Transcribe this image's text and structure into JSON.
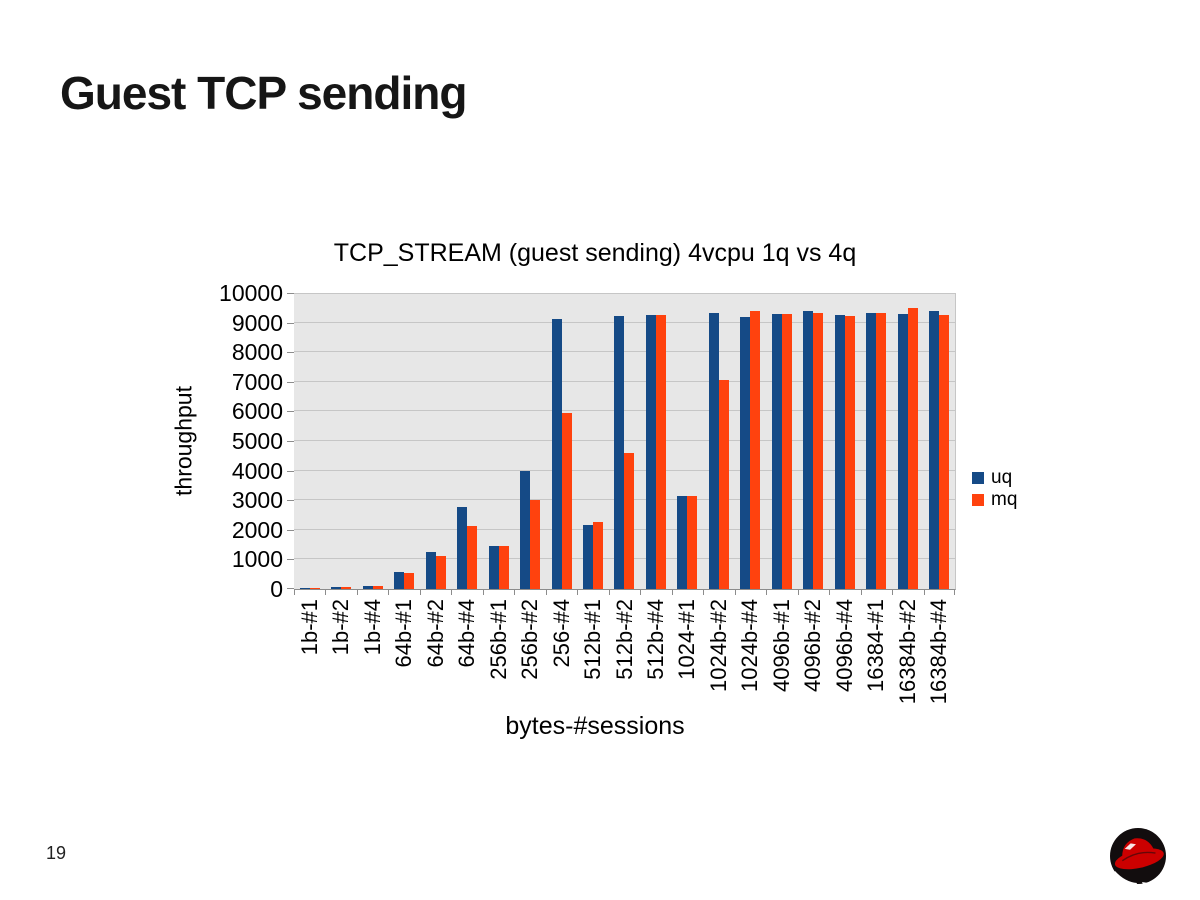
{
  "slide": {
    "title": "Guest TCP sending",
    "page_number": "19"
  },
  "logo": {
    "name": "redhat-shadowman-logo",
    "hat_color": "#cc0000",
    "shadow_color": "#120d0e"
  },
  "chart_data": {
    "type": "bar",
    "title": "TCP_STREAM (guest sending) 4vcpu 1q vs 4q",
    "xlabel": "bytes-#sessions",
    "ylabel": "throughput",
    "ylim": [
      0,
      10000
    ],
    "ytick_step": 1000,
    "grid": true,
    "legend_position": "right",
    "plot_bg": "#e7e7e7",
    "gridline_color": "#c6c6c6",
    "axis_color": "#8c8c8c",
    "categories": [
      "1b-#1",
      "1b-#2",
      "1b-#4",
      "64b-#1",
      "64b-#2",
      "64b-#4",
      "256b-#1",
      "256b-#2",
      "256-#4",
      "512b-#1",
      "512b-#2",
      "512b-#4",
      "1024-#1",
      "1024b-#2",
      "1024b-#4",
      "4096b-#1",
      "4096b-#2",
      "4096b-#4",
      "16384-#1",
      "16384b-#2",
      "16384b-#4"
    ],
    "series": [
      {
        "name": "uq",
        "color": "#154a86",
        "values": [
          30,
          60,
          100,
          580,
          1250,
          2780,
          1440,
          3975,
          9110,
          2150,
          9210,
          9240,
          3130,
          9330,
          9200,
          9300,
          9400,
          9260,
          9340,
          9280,
          9380
        ]
      },
      {
        "name": "mq",
        "color": "#ff420e",
        "values": [
          25,
          55,
          85,
          545,
          1115,
          2135,
          1445,
          3010,
          5930,
          2250,
          4600,
          9240,
          3150,
          7070,
          9400,
          9275,
          9310,
          9230,
          9320,
          9480,
          9270
        ]
      }
    ]
  }
}
